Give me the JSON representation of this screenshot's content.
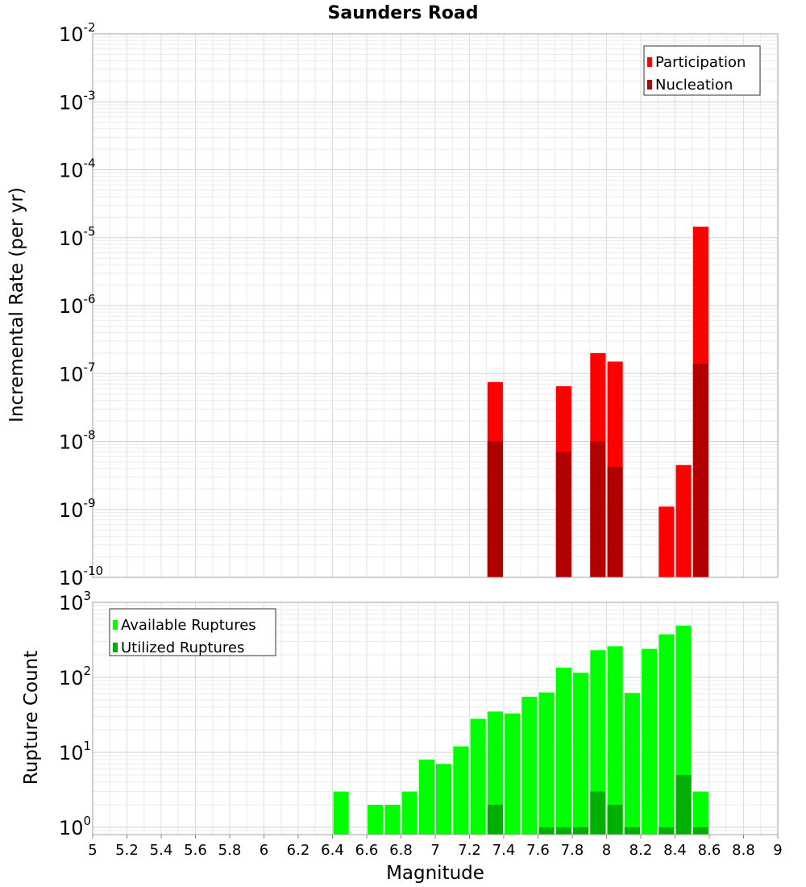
{
  "chart_data": [
    {
      "type": "bar",
      "title": "Saunders Road",
      "ylabel": "Incremental Rate (per yr)",
      "xlabel": "",
      "y_scale": "log",
      "ylim": [
        1e-10,
        0.01
      ],
      "xlim": [
        5,
        9
      ],
      "bar_width": 0.09,
      "legend_position": "top-right",
      "y_ticks": [
        {
          "base": "10",
          "exp": "-10"
        },
        {
          "base": "10",
          "exp": "-9"
        },
        {
          "base": "10",
          "exp": "-8"
        },
        {
          "base": "10",
          "exp": "-7"
        },
        {
          "base": "10",
          "exp": "-6"
        },
        {
          "base": "10",
          "exp": "-5"
        },
        {
          "base": "10",
          "exp": "-4"
        },
        {
          "base": "10",
          "exp": "-3"
        },
        {
          "base": "10",
          "exp": "-2"
        }
      ],
      "series": [
        {
          "name": "Participation",
          "color": "#ff0000",
          "points": [
            {
              "x": 7.35,
              "y": 7.5e-08
            },
            {
              "x": 7.75,
              "y": 6.5e-08
            },
            {
              "x": 7.95,
              "y": 2e-07
            },
            {
              "x": 8.05,
              "y": 1.5e-07
            },
            {
              "x": 8.35,
              "y": 1.1e-09
            },
            {
              "x": 8.45,
              "y": 4.5e-09
            },
            {
              "x": 8.55,
              "y": 1.45e-05
            }
          ]
        },
        {
          "name": "Nucleation",
          "color": "#b00000",
          "points": [
            {
              "x": 7.35,
              "y": 1e-08
            },
            {
              "x": 7.75,
              "y": 7e-09
            },
            {
              "x": 7.95,
              "y": 1e-08
            },
            {
              "x": 8.05,
              "y": 4.2e-09
            },
            {
              "x": 8.55,
              "y": 1.4e-07
            }
          ]
        }
      ]
    },
    {
      "type": "bar",
      "title": "",
      "ylabel": "Rupture Count",
      "xlabel": "Magnitude",
      "y_scale": "log",
      "ylim": [
        0.8,
        1000
      ],
      "xlim": [
        5,
        9
      ],
      "bar_width": 0.09,
      "legend_position": "top-left",
      "y_ticks": [
        {
          "base": "10",
          "exp": "0",
          "value": 1
        },
        {
          "base": "10",
          "exp": "1",
          "value": 10
        },
        {
          "base": "10",
          "exp": "2",
          "value": 100
        },
        {
          "base": "10",
          "exp": "3",
          "value": 1000
        }
      ],
      "x_ticks": [
        "5",
        "5.2",
        "5.4",
        "5.6",
        "5.8",
        "6",
        "6.2",
        "6.4",
        "6.6",
        "6.8",
        "7",
        "7.2",
        "7.4",
        "7.6",
        "7.8",
        "8",
        "8.2",
        "8.4",
        "8.6",
        "8.8",
        "9"
      ],
      "series": [
        {
          "name": "Available Ruptures",
          "color": "#00ff00",
          "points": [
            {
              "x": 6.45,
              "y": 3
            },
            {
              "x": 6.65,
              "y": 2
            },
            {
              "x": 6.75,
              "y": 2
            },
            {
              "x": 6.85,
              "y": 3
            },
            {
              "x": 6.95,
              "y": 8
            },
            {
              "x": 7.05,
              "y": 7
            },
            {
              "x": 7.15,
              "y": 12
            },
            {
              "x": 7.25,
              "y": 28
            },
            {
              "x": 7.35,
              "y": 35
            },
            {
              "x": 7.45,
              "y": 33
            },
            {
              "x": 7.55,
              "y": 55
            },
            {
              "x": 7.65,
              "y": 63
            },
            {
              "x": 7.75,
              "y": 135
            },
            {
              "x": 7.85,
              "y": 115
            },
            {
              "x": 7.95,
              "y": 230
            },
            {
              "x": 8.05,
              "y": 260
            },
            {
              "x": 8.15,
              "y": 62
            },
            {
              "x": 8.25,
              "y": 240
            },
            {
              "x": 8.35,
              "y": 375
            },
            {
              "x": 8.45,
              "y": 490
            },
            {
              "x": 8.55,
              "y": 3
            }
          ]
        },
        {
          "name": "Utilized Ruptures",
          "color": "#00b000",
          "points": [
            {
              "x": 7.35,
              "y": 2
            },
            {
              "x": 7.65,
              "y": 1
            },
            {
              "x": 7.75,
              "y": 1
            },
            {
              "x": 7.85,
              "y": 1
            },
            {
              "x": 7.95,
              "y": 3
            },
            {
              "x": 8.05,
              "y": 2
            },
            {
              "x": 8.15,
              "y": 1
            },
            {
              "x": 8.35,
              "y": 1
            },
            {
              "x": 8.45,
              "y": 5
            },
            {
              "x": 8.55,
              "y": 1
            }
          ]
        }
      ]
    }
  ]
}
